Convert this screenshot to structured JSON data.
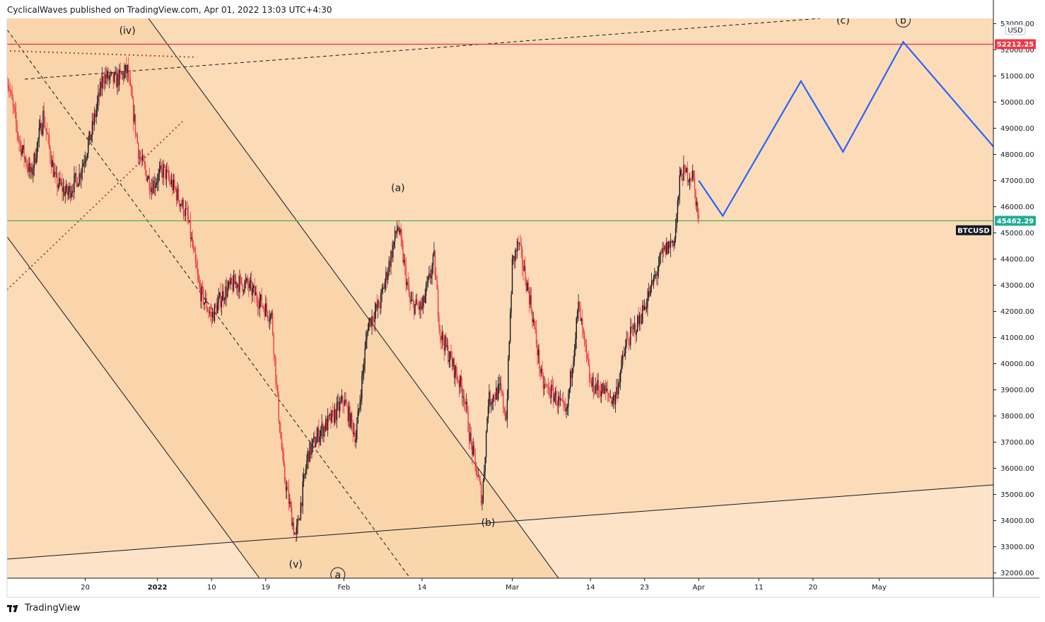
{
  "header": {
    "text": "CyclicalWaves published on TradingView.com, Apr 01, 2022 13:03 UTC+4:30"
  },
  "footer": {
    "brand": "TradingView"
  },
  "chart_data": {
    "type": "candlestick",
    "symbol": "BTCUSD",
    "currency": "USD",
    "ylim": [
      31800,
      53200
    ],
    "yticks": [
      32000,
      33000,
      34000,
      35000,
      36000,
      37000,
      38000,
      39000,
      40000,
      41000,
      42000,
      43000,
      44000,
      45000,
      46000,
      47000,
      48000,
      49000,
      50000,
      51000,
      52000,
      53000
    ],
    "ytick_labels": [
      "32000.00",
      "33000.00",
      "34000.00",
      "35000.00",
      "36000.00",
      "37000.00",
      "38000.00",
      "39000.00",
      "40000.00",
      "41000.00",
      "42000.00",
      "43000.00",
      "44000.00",
      "45000.00",
      "46000.00",
      "47000.00",
      "48000.00",
      "49000.00",
      "50000.00",
      "51000.00",
      "52000.00",
      "53000.00"
    ],
    "xlim": [
      "2021-12-07",
      "2022-05-20"
    ],
    "xticks": [
      {
        "date": "2021-12-20",
        "label": "20"
      },
      {
        "date": "2022-01-01",
        "label": "2022"
      },
      {
        "date": "2022-01-10",
        "label": "10"
      },
      {
        "date": "2022-01-19",
        "label": "19"
      },
      {
        "date": "2022-02-01",
        "label": "Feb"
      },
      {
        "date": "2022-02-14",
        "label": "14"
      },
      {
        "date": "2022-03-01",
        "label": "Mar"
      },
      {
        "date": "2022-03-14",
        "label": "14"
      },
      {
        "date": "2022-03-23",
        "label": "23"
      },
      {
        "date": "2022-04-01",
        "label": "Apr"
      },
      {
        "date": "2022-04-11",
        "label": "11"
      },
      {
        "date": "2022-04-20",
        "label": "20"
      },
      {
        "date": "2022-05-01",
        "label": "May"
      }
    ],
    "price_path": [
      [
        "2021-12-07",
        51000
      ],
      [
        "2021-12-09",
        48500
      ],
      [
        "2021-12-11",
        47200
      ],
      [
        "2021-12-13",
        49500
      ],
      [
        "2021-12-15",
        47000
      ],
      [
        "2021-12-17",
        46500
      ],
      [
        "2021-12-19",
        47200
      ],
      [
        "2021-12-21",
        48800
      ],
      [
        "2021-12-23",
        51000
      ],
      [
        "2021-12-25",
        50800
      ],
      [
        "2021-12-27",
        51200
      ],
      [
        "2021-12-29",
        47900
      ],
      [
        "2021-12-31",
        46800
      ],
      [
        "2022-01-02",
        47400
      ],
      [
        "2022-01-04",
        46600
      ],
      [
        "2022-01-06",
        45600
      ],
      [
        "2022-01-08",
        42800
      ],
      [
        "2022-01-10",
        41800
      ],
      [
        "2022-01-12",
        42700
      ],
      [
        "2022-01-14",
        43100
      ],
      [
        "2022-01-16",
        43000
      ],
      [
        "2022-01-18",
        42400
      ],
      [
        "2022-01-20",
        41800
      ],
      [
        "2022-01-21",
        38500
      ],
      [
        "2022-01-22",
        35800
      ],
      [
        "2022-01-24",
        33300
      ],
      [
        "2022-01-26",
        36500
      ],
      [
        "2022-01-28",
        37400
      ],
      [
        "2022-01-30",
        37900
      ],
      [
        "2022-02-01",
        38600
      ],
      [
        "2022-02-03",
        37200
      ],
      [
        "2022-02-05",
        41500
      ],
      [
        "2022-02-07",
        42300
      ],
      [
        "2022-02-09",
        44300
      ],
      [
        "2022-02-10",
        45300
      ],
      [
        "2022-02-12",
        42300
      ],
      [
        "2022-02-14",
        42100
      ],
      [
        "2022-02-16",
        44000
      ],
      [
        "2022-02-17",
        41200
      ],
      [
        "2022-02-19",
        40000
      ],
      [
        "2022-02-21",
        38800
      ],
      [
        "2022-02-22",
        37100
      ],
      [
        "2022-02-24",
        34800
      ],
      [
        "2022-02-25",
        38600
      ],
      [
        "2022-02-27",
        39000
      ],
      [
        "2022-02-28",
        37900
      ],
      [
        "2022-03-01",
        43800
      ],
      [
        "2022-03-02",
        44600
      ],
      [
        "2022-03-04",
        42400
      ],
      [
        "2022-03-06",
        39200
      ],
      [
        "2022-03-08",
        38800
      ],
      [
        "2022-03-10",
        38000
      ],
      [
        "2022-03-12",
        42200
      ],
      [
        "2022-03-14",
        39200
      ],
      [
        "2022-03-16",
        39000
      ],
      [
        "2022-03-18",
        38600
      ],
      [
        "2022-03-20",
        40800
      ],
      [
        "2022-03-22",
        41600
      ],
      [
        "2022-03-24",
        42800
      ],
      [
        "2022-03-26",
        44200
      ],
      [
        "2022-03-28",
        44800
      ],
      [
        "2022-03-29",
        47300
      ],
      [
        "2022-03-31",
        47200
      ],
      [
        "2022-04-01",
        45462
      ]
    ],
    "price_tags": [
      {
        "value": 52212.25,
        "label": "52212.25",
        "color": "#f23645"
      },
      {
        "value": 45462.29,
        "label": "45462.29",
        "color": "#22ab94"
      }
    ],
    "symbol_tag": {
      "value": 45100,
      "label": "BTCUSD"
    },
    "horizontal_lines": [
      {
        "value": 52212.25,
        "color": "#f23645"
      },
      {
        "value": 45462.29,
        "color": "#4caf50"
      }
    ],
    "projection": {
      "color": "#2962ff",
      "points": [
        [
          "2022-04-01",
          47000
        ],
        [
          "2022-04-05",
          45650
        ],
        [
          "2022-04-18",
          50800
        ],
        [
          "2022-04-25",
          48100
        ],
        [
          "2022-05-05",
          52300
        ],
        [
          "2022-05-20",
          48300
        ]
      ]
    },
    "wave_labels": [
      {
        "text": "(iv)",
        "date": "2021-12-27",
        "value": 52600
      },
      {
        "text": "(v)",
        "date": "2022-01-24",
        "value": 32200
      },
      {
        "text": "(a)",
        "date": "2022-02-10",
        "value": 46600
      },
      {
        "text": "(b)",
        "date": "2022-02-25",
        "value": 33800
      },
      {
        "text": "(c)",
        "date": "2022-04-25",
        "value": 53000
      },
      {
        "text": "b",
        "date": "2022-05-05",
        "value": 53000,
        "circled": true
      },
      {
        "text": "a",
        "date": "2022-01-31",
        "value": 31800,
        "circled": true
      }
    ],
    "colors": {
      "up": "#131722",
      "down": "#f23645",
      "zone_light": "#fde3c8",
      "zone_mid": "#fcdcb8",
      "zone_dark": "#fad4aa",
      "trend": "#131722",
      "dotted": "#b04a30"
    }
  }
}
